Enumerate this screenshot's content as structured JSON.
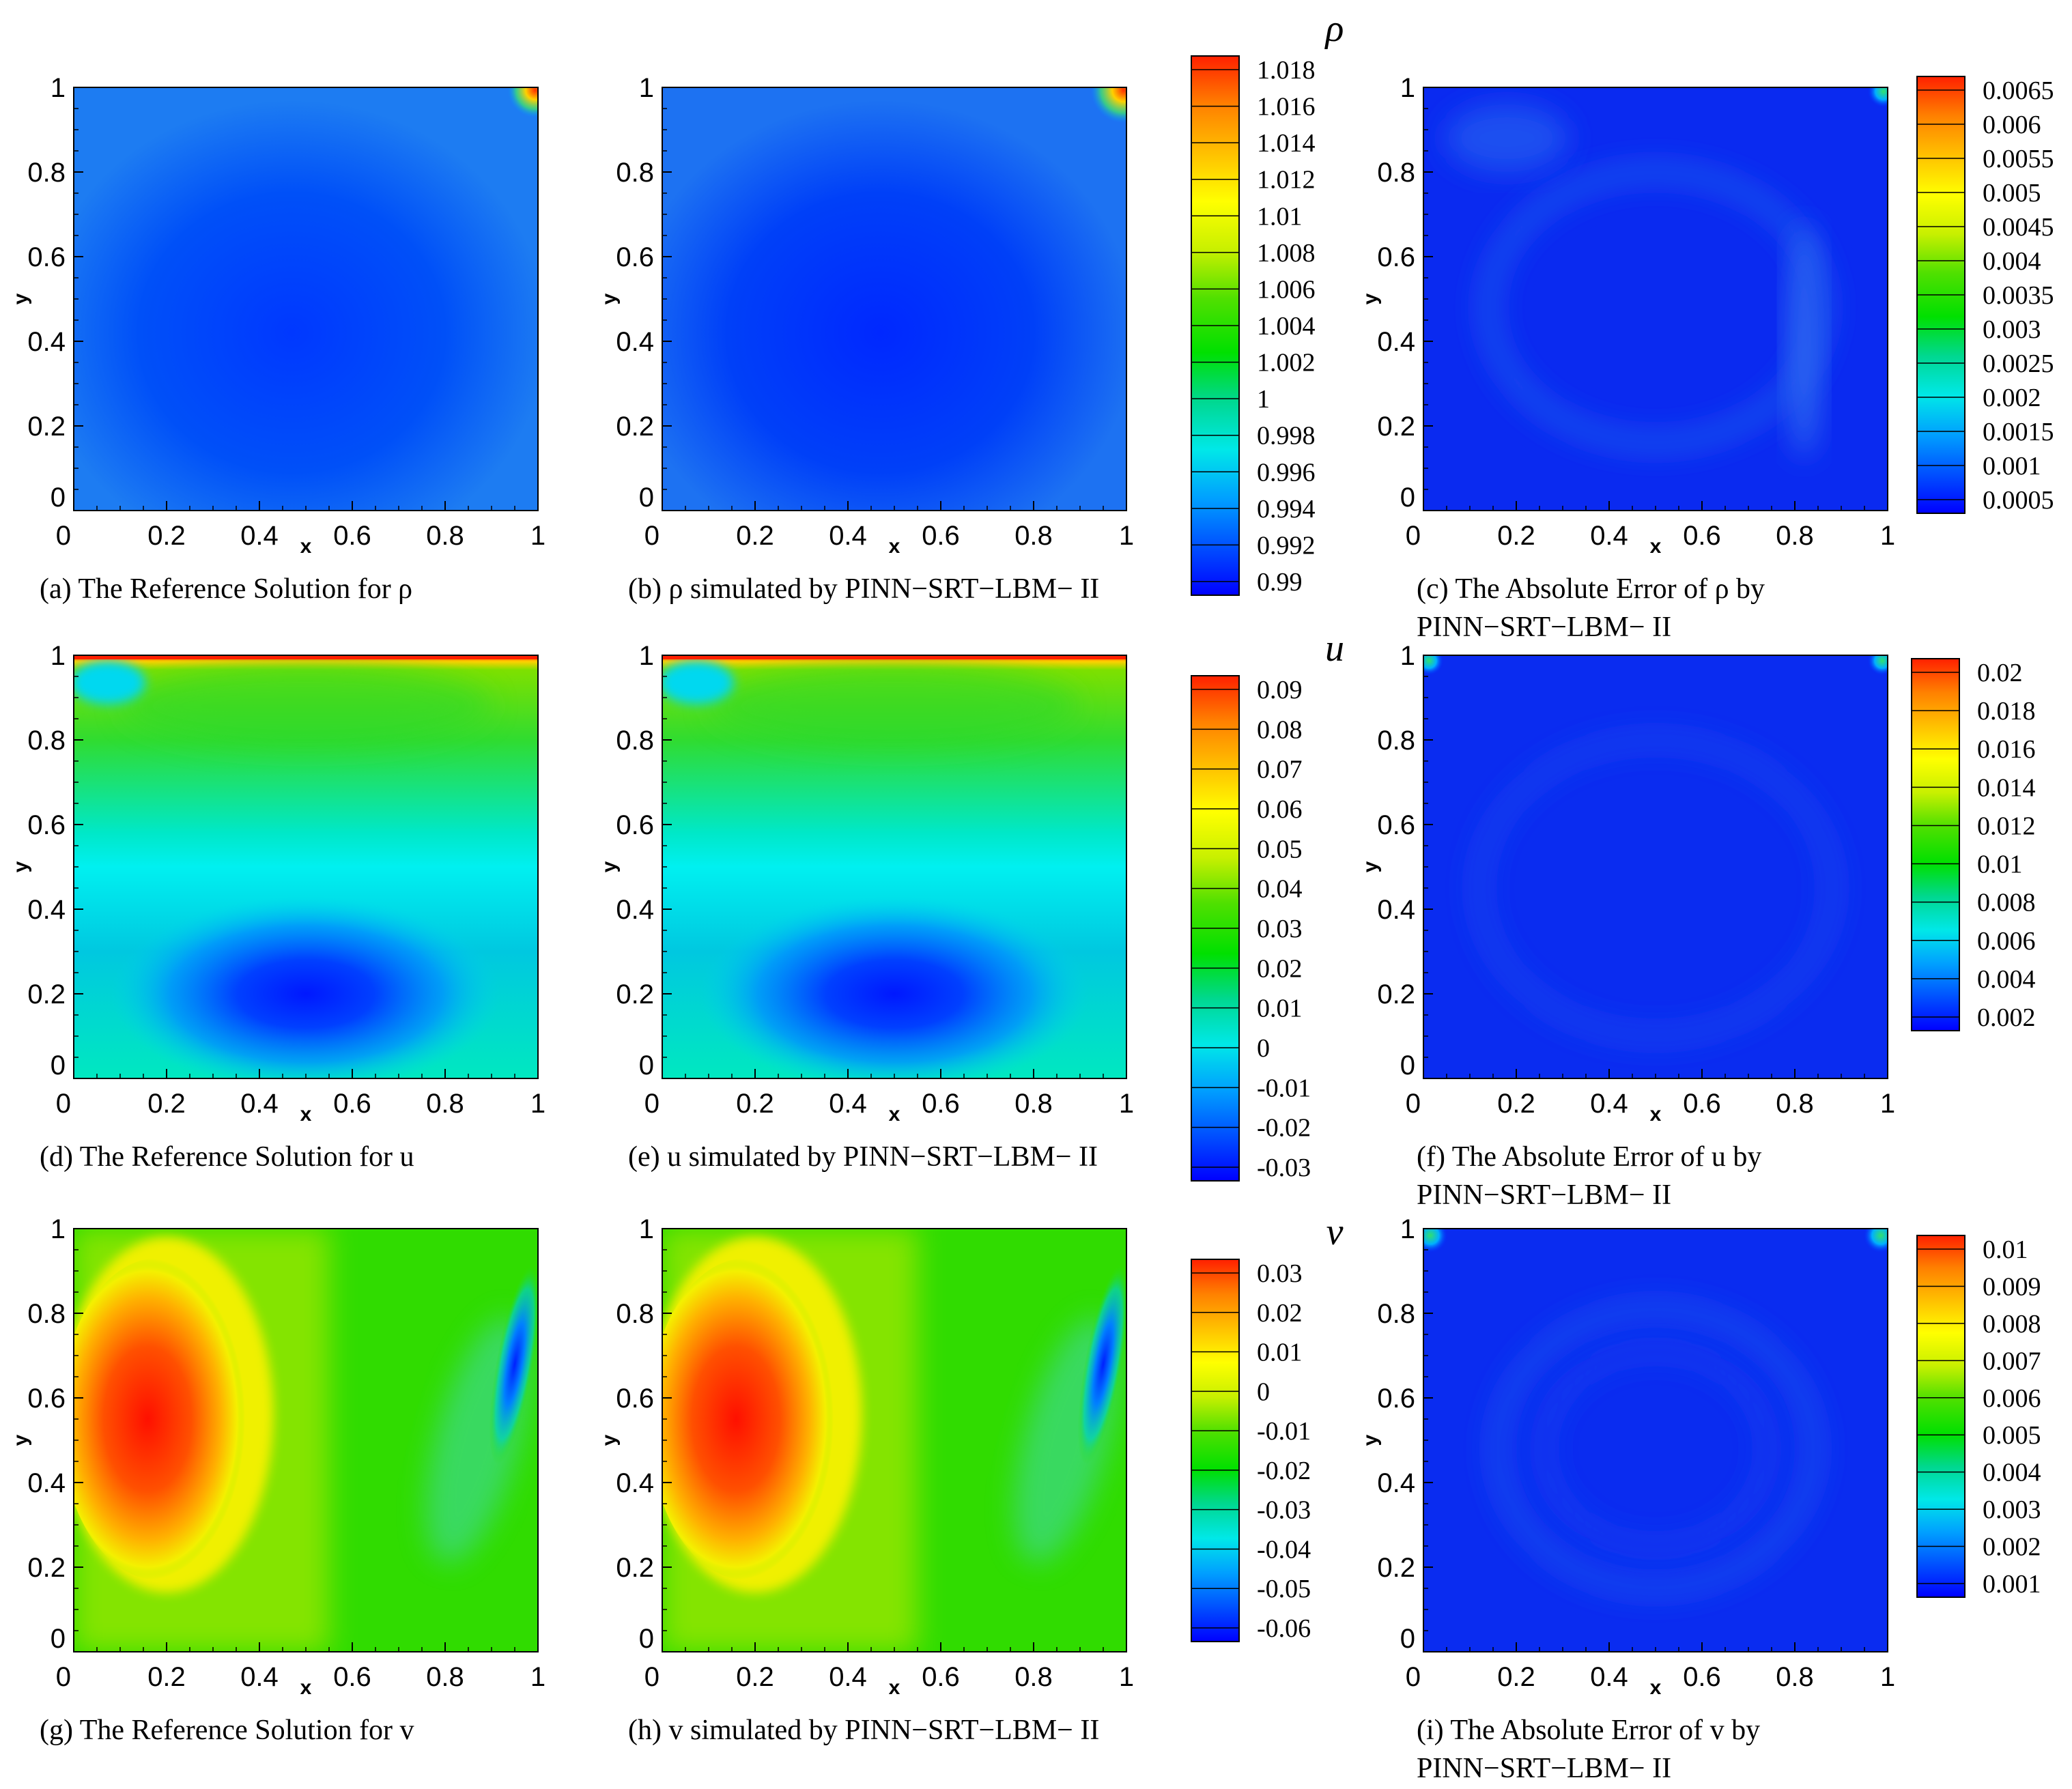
{
  "chart_data": [
    {
      "id": "a",
      "type": "heatmap",
      "field": "rho_ref",
      "caption": [
        "(a) The Reference Solution for ρ"
      ],
      "xlabel": "x",
      "ylabel": "y",
      "xlim": [
        0,
        1
      ],
      "ylim": [
        0,
        1
      ],
      "ticks": [
        "0",
        "0.2",
        "0.4",
        "0.6",
        "0.8",
        "1"
      ]
    },
    {
      "id": "b",
      "type": "heatmap",
      "field": "rho_pinn",
      "caption": [
        "(b) ρ simulated by PINN−SRT−LBM− II"
      ],
      "xlabel": "x",
      "ylabel": "y",
      "xlim": [
        0,
        1
      ],
      "ylim": [
        0,
        1
      ],
      "ticks": [
        "0",
        "0.2",
        "0.4",
        "0.6",
        "0.8",
        "1"
      ]
    },
    {
      "id": "c",
      "type": "heatmap",
      "field": "rho_err",
      "caption": [
        "(c) The Absolute Error of ρ by",
        "PINN−SRT−LBM− II"
      ],
      "xlabel": "x",
      "ylabel": "y",
      "xlim": [
        0,
        1
      ],
      "ylim": [
        0,
        1
      ],
      "ticks": [
        "0",
        "0.2",
        "0.4",
        "0.6",
        "0.8",
        "1"
      ]
    },
    {
      "id": "d",
      "type": "heatmap",
      "field": "u_ref",
      "caption": [
        "(d) The Reference Solution for u"
      ],
      "xlabel": "x",
      "ylabel": "y",
      "xlim": [
        0,
        1
      ],
      "ylim": [
        0,
        1
      ],
      "ticks": [
        "0",
        "0.2",
        "0.4",
        "0.6",
        "0.8",
        "1"
      ]
    },
    {
      "id": "e",
      "type": "heatmap",
      "field": "u_pinn",
      "caption": [
        "(e) u simulated by PINN−SRT−LBM− II"
      ],
      "xlabel": "x",
      "ylabel": "y",
      "xlim": [
        0,
        1
      ],
      "ylim": [
        0,
        1
      ],
      "ticks": [
        "0",
        "0.2",
        "0.4",
        "0.6",
        "0.8",
        "1"
      ]
    },
    {
      "id": "f",
      "type": "heatmap",
      "field": "u_err",
      "caption": [
        "(f) The Absolute Error of u by",
        "PINN−SRT−LBM− II"
      ],
      "xlabel": "x",
      "ylabel": "y",
      "xlim": [
        0,
        1
      ],
      "ylim": [
        0,
        1
      ],
      "ticks": [
        "0",
        "0.2",
        "0.4",
        "0.6",
        "0.8",
        "1"
      ]
    },
    {
      "id": "g",
      "type": "heatmap",
      "field": "v_ref",
      "caption": [
        "(g) The Reference Solution for v"
      ],
      "xlabel": "x",
      "ylabel": "y",
      "xlim": [
        0,
        1
      ],
      "ylim": [
        0,
        1
      ],
      "ticks": [
        "0",
        "0.2",
        "0.4",
        "0.6",
        "0.8",
        "1"
      ]
    },
    {
      "id": "h",
      "type": "heatmap",
      "field": "v_pinn",
      "caption": [
        "(h) v simulated by PINN−SRT−LBM− II"
      ],
      "xlabel": "x",
      "ylabel": "y",
      "xlim": [
        0,
        1
      ],
      "ylim": [
        0,
        1
      ],
      "ticks": [
        "0",
        "0.2",
        "0.4",
        "0.6",
        "0.8",
        "1"
      ]
    },
    {
      "id": "i",
      "type": "heatmap",
      "field": "v_err",
      "caption": [
        "(i) The Absolute Error of v by",
        "PINN−SRT−LBM− II"
      ],
      "xlabel": "x",
      "ylabel": "y",
      "xlim": [
        0,
        1
      ],
      "ylim": [
        0,
        1
      ],
      "ticks": [
        "0",
        "0.2",
        "0.4",
        "0.6",
        "0.8",
        "1"
      ]
    }
  ],
  "colorbars": [
    {
      "id": "cb-rho",
      "title": "ρ",
      "labels": [
        "1.018",
        "1.016",
        "1.014",
        "1.012",
        "1.01",
        "1.008",
        "1.006",
        "1.004",
        "1.002",
        "1",
        "0.998",
        "0.996",
        "0.994",
        "0.992",
        "0.99"
      ]
    },
    {
      "id": "cb-rho-err",
      "title": "",
      "labels": [
        "0.0065",
        "0.006",
        "0.0055",
        "0.005",
        "0.0045",
        "0.004",
        "0.0035",
        "0.003",
        "0.0025",
        "0.002",
        "0.0015",
        "0.001",
        "0.0005"
      ]
    },
    {
      "id": "cb-u",
      "title": "u",
      "labels": [
        "0.09",
        "0.08",
        "0.07",
        "0.06",
        "0.05",
        "0.04",
        "0.03",
        "0.02",
        "0.01",
        "0",
        "-0.01",
        "-0.02",
        "-0.03"
      ]
    },
    {
      "id": "cb-u-err",
      "title": "",
      "labels": [
        "0.02",
        "0.018",
        "0.016",
        "0.014",
        "0.012",
        "0.01",
        "0.008",
        "0.006",
        "0.004",
        "0.002"
      ]
    },
    {
      "id": "cb-v",
      "title": "v",
      "labels": [
        "0.03",
        "0.02",
        "0.01",
        "0",
        "-0.01",
        "-0.02",
        "-0.03",
        "-0.04",
        "-0.05",
        "-0.06"
      ]
    },
    {
      "id": "cb-v-err",
      "title": "",
      "labels": [
        "0.01",
        "0.009",
        "0.008",
        "0.007",
        "0.006",
        "0.005",
        "0.004",
        "0.003",
        "0.002",
        "0.001"
      ]
    }
  ],
  "colormap": [
    "#0000ff",
    "#0050ff",
    "#00a0ff",
    "#00e8e8",
    "#00d890",
    "#00e000",
    "#50e000",
    "#c8f000",
    "#ffff00",
    "#ffc000",
    "#ff8000",
    "#ff2000"
  ]
}
